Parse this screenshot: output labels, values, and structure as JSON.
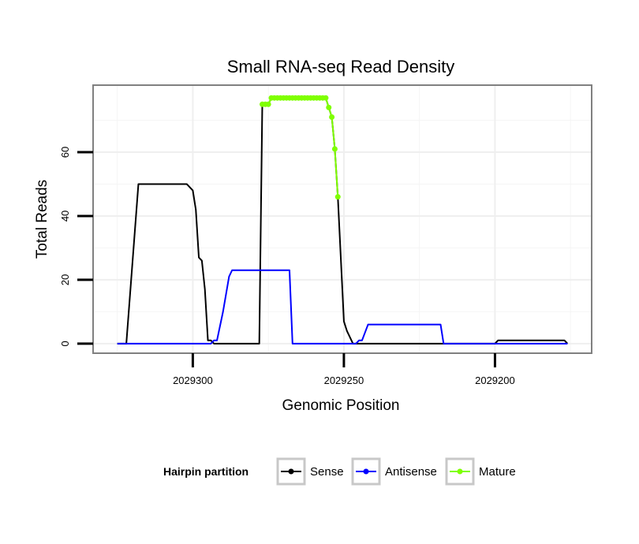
{
  "chart_data": {
    "type": "line",
    "title": "Small RNA-seq Read Density",
    "xlabel": "Genomic Position",
    "ylabel": "Total Reads",
    "x_reversed": true,
    "xlim": [
      2029333,
      2029168
    ],
    "ylim": [
      -3,
      81
    ],
    "x_ticks": [
      2029300,
      2029250,
      2029200
    ],
    "x_tick_labels": [
      "2029300",
      "2029250",
      "2029200"
    ],
    "y_ticks": [
      0,
      20,
      40,
      60
    ],
    "y_tick_labels": [
      "0",
      "20",
      "40",
      "60"
    ],
    "grid": true,
    "legend": {
      "title": "Hairpin partition",
      "position": "bottom",
      "entries": [
        "Sense",
        "Antisense",
        "Mature"
      ]
    },
    "series": [
      {
        "name": "Sense",
        "color": "#000000",
        "points": [
          [
            2029325,
            0
          ],
          [
            2029322,
            0
          ],
          [
            2029320,
            25
          ],
          [
            2029318,
            50
          ],
          [
            2029317,
            50
          ],
          [
            2029302,
            50
          ],
          [
            2029300,
            48
          ],
          [
            2029299,
            42
          ],
          [
            2029298,
            27
          ],
          [
            2029297,
            26
          ],
          [
            2029296,
            17
          ],
          [
            2029295,
            1
          ],
          [
            2029294,
            1
          ],
          [
            2029293,
            0
          ],
          [
            2029286,
            0
          ],
          [
            2029278,
            0
          ],
          [
            2029277,
            75
          ],
          [
            2029275,
            75
          ],
          [
            2029274,
            77
          ],
          [
            2029256,
            77
          ],
          [
            2029255,
            74
          ],
          [
            2029254,
            71
          ],
          [
            2029253,
            61
          ],
          [
            2029252,
            46
          ],
          [
            2029250,
            7
          ],
          [
            2029249,
            4
          ],
          [
            2029247,
            0
          ],
          [
            2029200,
            0
          ],
          [
            2029199,
            1
          ],
          [
            2029177,
            1
          ],
          [
            2029176,
            0
          ]
        ]
      },
      {
        "name": "Antisense",
        "color": "#0000ff",
        "points": [
          [
            2029325,
            0
          ],
          [
            2029294,
            0
          ],
          [
            2029293,
            1
          ],
          [
            2029292,
            1
          ],
          [
            2029290,
            10
          ],
          [
            2029288,
            21
          ],
          [
            2029287,
            23
          ],
          [
            2029268,
            23
          ],
          [
            2029267,
            0
          ],
          [
            2029246,
            0
          ],
          [
            2029245,
            1
          ],
          [
            2029244,
            1
          ],
          [
            2029242,
            6
          ],
          [
            2029218,
            6
          ],
          [
            2029217,
            0
          ],
          [
            2029176,
            0
          ]
        ]
      },
      {
        "name": "Mature",
        "color": "#7fff00",
        "points": [
          [
            2029277,
            75
          ],
          [
            2029276,
            75
          ],
          [
            2029275,
            75
          ],
          [
            2029274,
            77
          ],
          [
            2029273,
            77
          ],
          [
            2029272,
            77
          ],
          [
            2029271,
            77
          ],
          [
            2029270,
            77
          ],
          [
            2029269,
            77
          ],
          [
            2029268,
            77
          ],
          [
            2029267,
            77
          ],
          [
            2029266,
            77
          ],
          [
            2029265,
            77
          ],
          [
            2029264,
            77
          ],
          [
            2029263,
            77
          ],
          [
            2029262,
            77
          ],
          [
            2029261,
            77
          ],
          [
            2029260,
            77
          ],
          [
            2029259,
            77
          ],
          [
            2029258,
            77
          ],
          [
            2029257,
            77
          ],
          [
            2029256,
            77
          ],
          [
            2029255,
            74
          ],
          [
            2029254,
            71
          ],
          [
            2029253,
            61
          ],
          [
            2029252,
            46
          ]
        ]
      }
    ]
  }
}
